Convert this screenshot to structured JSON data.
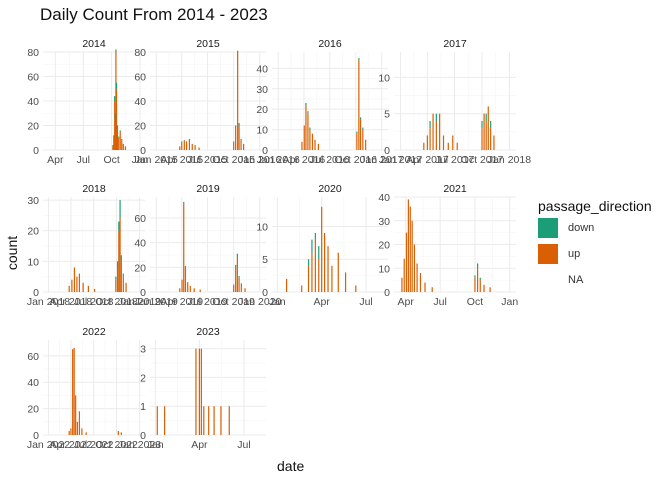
{
  "title": "Daily Count From 2014 - 2023",
  "xlabel": "date",
  "ylabel": "count",
  "legend": {
    "title": "passage_direction",
    "entries": [
      {
        "label": "down",
        "color": "#1b9e77"
      },
      {
        "label": "up",
        "color": "#d95f02"
      },
      {
        "label": "NA",
        "color": "#ffffff"
      }
    ]
  },
  "chart_data": {
    "type": "bar",
    "facet_by": "year",
    "grid": true,
    "series_colors": {
      "down": "#1b9e77",
      "up": "#d95f02"
    },
    "panels": [
      {
        "label": "2014",
        "ylim": [
          0,
          80
        ],
        "yticks": [
          0,
          20,
          40,
          60,
          80
        ],
        "xticks": [
          "Apr",
          "Jul",
          "Oct",
          "Jan"
        ],
        "bars": [
          {
            "date": "2014-10-05",
            "up": 3,
            "down": 1
          },
          {
            "date": "2014-10-08",
            "up": 10,
            "down": 2
          },
          {
            "date": "2014-10-11",
            "up": 40,
            "down": 4
          },
          {
            "date": "2014-10-13",
            "up": 25,
            "down": 5
          },
          {
            "date": "2014-10-15",
            "up": 80,
            "down": 2
          },
          {
            "date": "2014-10-17",
            "up": 50,
            "down": 5
          },
          {
            "date": "2014-10-20",
            "up": 18,
            "down": 2
          },
          {
            "date": "2014-10-24",
            "up": 10,
            "down": 1
          },
          {
            "date": "2014-10-29",
            "up": 15,
            "down": 1
          },
          {
            "date": "2014-11-03",
            "up": 8,
            "down": 1
          },
          {
            "date": "2014-11-08",
            "up": 5,
            "down": 0
          },
          {
            "date": "2014-11-15",
            "up": 3,
            "down": 0
          }
        ]
      },
      {
        "label": "2015",
        "ylim": [
          0,
          80
        ],
        "yticks": [
          0,
          20,
          40,
          60,
          80
        ],
        "xticks": [
          "Jan 2015",
          "Apr 2015",
          "Jul 2015",
          "Oct 2015",
          "Jan 2016"
        ],
        "bars": [
          {
            "date": "2015-03-25",
            "up": 3,
            "down": 0
          },
          {
            "date": "2015-04-01",
            "up": 6,
            "down": 1
          },
          {
            "date": "2015-04-10",
            "up": 8,
            "down": 0
          },
          {
            "date": "2015-04-18",
            "up": 7,
            "down": 0
          },
          {
            "date": "2015-04-28",
            "up": 9,
            "down": 0
          },
          {
            "date": "2015-05-08",
            "up": 5,
            "down": 0
          },
          {
            "date": "2015-05-18",
            "up": 4,
            "down": 0
          },
          {
            "date": "2015-06-01",
            "up": 2,
            "down": 0
          },
          {
            "date": "2015-10-01",
            "up": 6,
            "down": 1
          },
          {
            "date": "2015-10-08",
            "up": 18,
            "down": 2
          },
          {
            "date": "2015-10-15",
            "up": 80,
            "down": 1
          },
          {
            "date": "2015-10-20",
            "up": 20,
            "down": 2
          },
          {
            "date": "2015-10-27",
            "up": 8,
            "down": 1
          },
          {
            "date": "2015-11-05",
            "up": 5,
            "down": 0
          }
        ]
      },
      {
        "label": "2016",
        "ylim": [
          0,
          48
        ],
        "yticks": [
          0,
          10,
          20,
          30,
          40
        ],
        "xticks": [
          "Jan 2016",
          "Apr 2016",
          "Jul 2016",
          "Oct 2016",
          "Jan 2017"
        ],
        "bars": [
          {
            "date": "2016-03-25",
            "up": 4,
            "down": 0
          },
          {
            "date": "2016-04-02",
            "up": 12,
            "down": 0
          },
          {
            "date": "2016-04-08",
            "up": 22,
            "down": 1
          },
          {
            "date": "2016-04-15",
            "up": 18,
            "down": 1
          },
          {
            "date": "2016-04-22",
            "up": 10,
            "down": 1
          },
          {
            "date": "2016-05-01",
            "up": 8,
            "down": 0
          },
          {
            "date": "2016-05-10",
            "up": 5,
            "down": 0
          },
          {
            "date": "2016-05-22",
            "up": 3,
            "down": 0
          },
          {
            "date": "2016-10-05",
            "up": 8,
            "down": 1
          },
          {
            "date": "2016-10-12",
            "up": 44,
            "down": 1
          },
          {
            "date": "2016-10-18",
            "up": 15,
            "down": 1
          },
          {
            "date": "2016-10-26",
            "up": 10,
            "down": 1
          },
          {
            "date": "2016-11-05",
            "up": 5,
            "down": 0
          }
        ]
      },
      {
        "label": "2017",
        "ylim": [
          0,
          13.5
        ],
        "yticks": [
          0,
          5,
          10
        ],
        "xticks": [
          "Jan 2017",
          "Apr 2017",
          "Jul 2017",
          "Oct 2017",
          "Jan 2018"
        ],
        "bars": [
          {
            "date": "2017-03-20",
            "up": 1,
            "down": 0
          },
          {
            "date": "2017-04-01",
            "up": 2,
            "down": 0
          },
          {
            "date": "2017-04-10",
            "up": 3,
            "down": 1
          },
          {
            "date": "2017-04-20",
            "up": 5,
            "down": 0
          },
          {
            "date": "2017-05-01",
            "up": 4,
            "down": 1
          },
          {
            "date": "2017-05-12",
            "up": 5,
            "down": 0
          },
          {
            "date": "2017-05-25",
            "up": 2,
            "down": 0
          },
          {
            "date": "2017-06-10",
            "up": 1,
            "down": 0
          },
          {
            "date": "2017-06-25",
            "up": 2,
            "down": 0
          },
          {
            "date": "2017-07-10",
            "up": 1,
            "down": 0
          },
          {
            "date": "2017-10-01",
            "up": 3,
            "down": 1
          },
          {
            "date": "2017-10-08",
            "up": 5,
            "down": 0
          },
          {
            "date": "2017-10-15",
            "up": 4,
            "down": 1
          },
          {
            "date": "2017-10-22",
            "up": 6,
            "down": 0
          },
          {
            "date": "2017-10-30",
            "up": 3,
            "down": 1
          },
          {
            "date": "2017-11-10",
            "up": 2,
            "down": 0
          }
        ]
      },
      {
        "label": "2018",
        "ylim": [
          0,
          31
        ],
        "yticks": [
          0,
          10,
          20,
          30
        ],
        "xticks": [
          "Jan 2018",
          "Apr 2018",
          "Jul 2018",
          "Oct 2018",
          "Jan 2019"
        ],
        "bars": [
          {
            "date": "2018-03-25",
            "up": 2,
            "down": 0
          },
          {
            "date": "2018-04-05",
            "up": 4,
            "down": 0
          },
          {
            "date": "2018-04-15",
            "up": 8,
            "down": 0
          },
          {
            "date": "2018-04-25",
            "up": 5,
            "down": 0
          },
          {
            "date": "2018-05-05",
            "up": 6,
            "down": 0
          },
          {
            "date": "2018-05-20",
            "up": 3,
            "down": 0
          },
          {
            "date": "2018-06-10",
            "up": 2,
            "down": 0
          },
          {
            "date": "2018-07-05",
            "up": 1,
            "down": 0
          },
          {
            "date": "2018-09-28",
            "up": 4,
            "down": 1
          },
          {
            "date": "2018-10-05",
            "up": 8,
            "down": 2
          },
          {
            "date": "2018-10-10",
            "up": 20,
            "down": 3
          },
          {
            "date": "2018-10-15",
            "up": 24,
            "down": 6
          },
          {
            "date": "2018-10-20",
            "up": 10,
            "down": 2
          },
          {
            "date": "2018-10-28",
            "up": 5,
            "down": 1
          },
          {
            "date": "2018-11-08",
            "up": 3,
            "down": 0
          }
        ]
      },
      {
        "label": "2019",
        "ylim": [
          0,
          77
        ],
        "yticks": [
          0,
          20,
          40,
          60
        ],
        "xticks": [
          "Jan 2019",
          "Apr 2019",
          "Jul 2019",
          "Oct 2019",
          "Jan 2020"
        ],
        "bars": [
          {
            "date": "2019-03-25",
            "up": 3,
            "down": 0
          },
          {
            "date": "2019-04-02",
            "up": 10,
            "down": 0
          },
          {
            "date": "2019-04-08",
            "up": 72,
            "down": 1
          },
          {
            "date": "2019-04-14",
            "up": 20,
            "down": 1
          },
          {
            "date": "2019-04-22",
            "up": 8,
            "down": 0
          },
          {
            "date": "2019-05-01",
            "up": 5,
            "down": 0
          },
          {
            "date": "2019-05-15",
            "up": 3,
            "down": 0
          },
          {
            "date": "2019-06-05",
            "up": 2,
            "down": 0
          },
          {
            "date": "2019-10-01",
            "up": 5,
            "down": 1
          },
          {
            "date": "2019-10-08",
            "up": 20,
            "down": 2
          },
          {
            "date": "2019-10-14",
            "up": 28,
            "down": 3
          },
          {
            "date": "2019-10-20",
            "up": 12,
            "down": 1
          },
          {
            "date": "2019-10-28",
            "up": 6,
            "down": 1
          },
          {
            "date": "2019-11-10",
            "up": 3,
            "down": 0
          }
        ]
      },
      {
        "label": "2020",
        "ylim": [
          0,
          14.5
        ],
        "yticks": [
          0,
          5,
          10
        ],
        "xticks": [
          "Jan",
          "Apr",
          "Jul"
        ],
        "bars": [
          {
            "date": "2020-01-20",
            "up": 2,
            "down": 0
          },
          {
            "date": "2020-02-20",
            "up": 1,
            "down": 0
          },
          {
            "date": "2020-03-05",
            "up": 4,
            "down": 1
          },
          {
            "date": "2020-03-12",
            "up": 6,
            "down": 2
          },
          {
            "date": "2020-03-19",
            "up": 8,
            "down": 1
          },
          {
            "date": "2020-03-26",
            "up": 5,
            "down": 2
          },
          {
            "date": "2020-04-01",
            "up": 13,
            "down": 0
          },
          {
            "date": "2020-04-07",
            "up": 9,
            "down": 0
          },
          {
            "date": "2020-04-14",
            "up": 7,
            "down": 0
          },
          {
            "date": "2020-04-22",
            "up": 4,
            "down": 0
          },
          {
            "date": "2020-05-05",
            "up": 6,
            "down": 0
          },
          {
            "date": "2020-05-20",
            "up": 3,
            "down": 0
          },
          {
            "date": "2020-06-10",
            "up": 1,
            "down": 0
          }
        ]
      },
      {
        "label": "2021",
        "ylim": [
          0,
          40
        ],
        "yticks": [
          0,
          10,
          20,
          30,
          40
        ],
        "xticks": [
          "Apr",
          "Jul",
          "Oct",
          "Jan"
        ],
        "bars": [
          {
            "date": "2021-03-22",
            "up": 6,
            "down": 0
          },
          {
            "date": "2021-03-28",
            "up": 14,
            "down": 0
          },
          {
            "date": "2021-04-03",
            "up": 25,
            "down": 0
          },
          {
            "date": "2021-04-08",
            "up": 39,
            "down": 0
          },
          {
            "date": "2021-04-13",
            "up": 36,
            "down": 0
          },
          {
            "date": "2021-04-18",
            "up": 30,
            "down": 0
          },
          {
            "date": "2021-04-24",
            "up": 20,
            "down": 0
          },
          {
            "date": "2021-05-01",
            "up": 12,
            "down": 0
          },
          {
            "date": "2021-05-10",
            "up": 8,
            "down": 0
          },
          {
            "date": "2021-05-22",
            "up": 4,
            "down": 0
          },
          {
            "date": "2021-06-10",
            "up": 2,
            "down": 0
          },
          {
            "date": "2021-10-01",
            "up": 6,
            "down": 1
          },
          {
            "date": "2021-10-08",
            "up": 10,
            "down": 2
          },
          {
            "date": "2021-10-15",
            "up": 5,
            "down": 1
          },
          {
            "date": "2021-10-25",
            "up": 3,
            "down": 0
          },
          {
            "date": "2021-11-10",
            "up": 2,
            "down": 0
          }
        ]
      },
      {
        "label": "2022",
        "ylim": [
          0,
          72
        ],
        "yticks": [
          0,
          20,
          40,
          60
        ],
        "xticks": [
          "Jan 2022",
          "Apr 2022",
          "Jul 2022",
          "Oct 2022",
          "Jan 2023"
        ],
        "bars": [
          {
            "date": "2022-03-25",
            "up": 3,
            "down": 0
          },
          {
            "date": "2022-04-01",
            "up": 5,
            "down": 0
          },
          {
            "date": "2022-04-08",
            "up": 65,
            "down": 0
          },
          {
            "date": "2022-04-14",
            "up": 66,
            "down": 0
          },
          {
            "date": "2022-04-20",
            "up": 30,
            "down": 0
          },
          {
            "date": "2022-04-27",
            "up": 10,
            "down": 0
          },
          {
            "date": "2022-05-05",
            "up": 18,
            "down": 0
          },
          {
            "date": "2022-05-15",
            "up": 5,
            "down": 0
          },
          {
            "date": "2022-06-01",
            "up": 2,
            "down": 0
          },
          {
            "date": "2022-10-08",
            "up": 3,
            "down": 0
          },
          {
            "date": "2022-10-20",
            "up": 2,
            "down": 0
          }
        ]
      },
      {
        "label": "2023",
        "ylim": [
          0,
          3.3
        ],
        "yticks": [
          0,
          1,
          2,
          3
        ],
        "xticks": [
          "Jan",
          "Apr",
          "Jul"
        ],
        "bars": [
          {
            "date": "2023-01-05",
            "up": 1,
            "down": 0
          },
          {
            "date": "2023-01-20",
            "up": 1,
            "down": 0
          },
          {
            "date": "2023-03-25",
            "up": 3,
            "down": 0
          },
          {
            "date": "2023-04-01",
            "up": 3,
            "down": 0
          },
          {
            "date": "2023-04-05",
            "up": 3,
            "down": 0
          },
          {
            "date": "2023-04-10",
            "up": 1,
            "down": 0
          },
          {
            "date": "2023-04-20",
            "up": 1,
            "down": 0
          },
          {
            "date": "2023-05-01",
            "up": 1,
            "down": 0
          },
          {
            "date": "2023-05-15",
            "up": 1,
            "down": 0
          },
          {
            "date": "2023-06-01",
            "up": 1,
            "down": 0
          }
        ]
      }
    ]
  }
}
